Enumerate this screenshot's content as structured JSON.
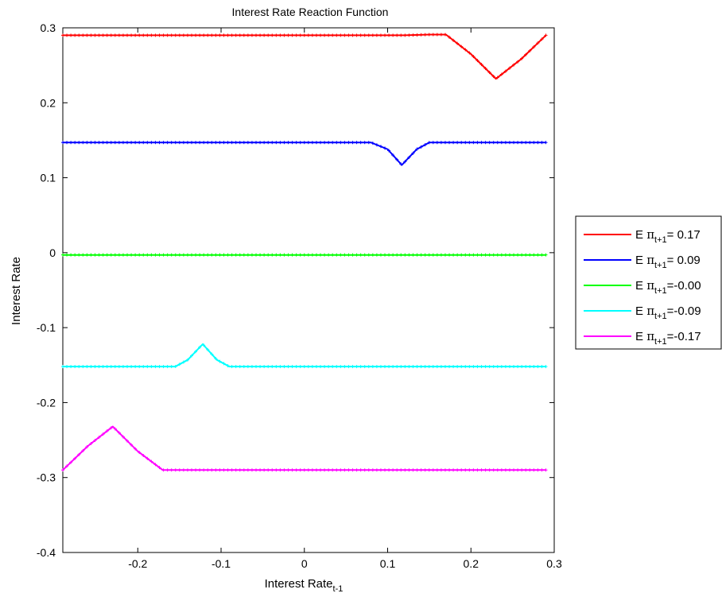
{
  "chart_data": {
    "type": "line",
    "title": "Interest Rate Reaction Function",
    "xlabel": "Interest Rate",
    "xlabel_subscript": "t-1",
    "ylabel": "Interest Rate",
    "xlim": [
      -0.29,
      0.3
    ],
    "ylim": [
      -0.4,
      0.3
    ],
    "x_ticks": [
      -0.2,
      -0.1,
      0,
      0.1,
      0.2,
      0.3
    ],
    "x_tick_labels": [
      "-0.2",
      "-0.1",
      "0",
      "0.1",
      "0.2",
      "0.3"
    ],
    "y_ticks": [
      -0.4,
      -0.3,
      -0.2,
      -0.1,
      0,
      0.1,
      0.2,
      0.3
    ],
    "y_tick_labels": [
      "-0.4",
      "-0.3",
      "-0.2",
      "-0.1",
      "0",
      "0.1",
      "0.2",
      "0.3"
    ],
    "grid": false,
    "legend_position": "outside-right",
    "series": [
      {
        "name": "E πt+1= 0.17",
        "legend_prefix": "E ",
        "legend_symbol": "π",
        "legend_subscript": "t+1",
        "legend_value": "= 0.17",
        "color": "#ff0000",
        "x": [
          -0.29,
          0.12,
          0.15,
          0.17,
          0.2,
          0.23,
          0.26,
          0.29
        ],
        "y": [
          0.29,
          0.29,
          0.291,
          0.291,
          0.265,
          0.232,
          0.258,
          0.29
        ]
      },
      {
        "name": "E πt+1= 0.09",
        "legend_prefix": "E ",
        "legend_symbol": "π",
        "legend_subscript": "t+1",
        "legend_value": "= 0.09",
        "color": "#0000ff",
        "x": [
          -0.29,
          0.08,
          0.1,
          0.117,
          0.135,
          0.15,
          0.29
        ],
        "y": [
          0.147,
          0.147,
          0.138,
          0.117,
          0.138,
          0.147,
          0.147
        ]
      },
      {
        "name": "E πt+1=-0.00",
        "legend_prefix": "E ",
        "legend_symbol": "π",
        "legend_subscript": "t+1",
        "legend_value": "=-0.00",
        "color": "#00ff00",
        "x": [
          -0.29,
          0.29
        ],
        "y": [
          -0.003,
          -0.003
        ]
      },
      {
        "name": "E πt+1=-0.09",
        "legend_prefix": "E ",
        "legend_symbol": "π",
        "legend_subscript": "t+1",
        "legend_value": "=-0.09",
        "color": "#00ffff",
        "x": [
          -0.29,
          -0.155,
          -0.14,
          -0.122,
          -0.105,
          -0.09,
          0.29
        ],
        "y": [
          -0.152,
          -0.152,
          -0.143,
          -0.122,
          -0.143,
          -0.152,
          -0.152
        ]
      },
      {
        "name": "E πt+1=-0.17",
        "legend_prefix": "E ",
        "legend_symbol": "π",
        "legend_subscript": "t+1",
        "legend_value": "=-0.17",
        "color": "#ff00ff",
        "x": [
          -0.29,
          -0.26,
          -0.23,
          -0.2,
          -0.17,
          -0.15,
          0.29
        ],
        "y": [
          -0.29,
          -0.258,
          -0.232,
          -0.265,
          -0.29,
          -0.29,
          -0.29
        ]
      }
    ]
  }
}
